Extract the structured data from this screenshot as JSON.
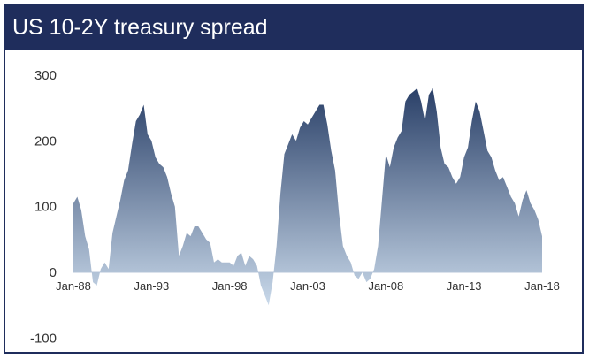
{
  "header": {
    "title": "US 10-2Y treasury spread"
  },
  "colors": {
    "header_bg": "#1f2d5c",
    "area_top": "#2a4068",
    "area_bottom": "#c9d9ea",
    "border": "#1f2d5c"
  },
  "chart_data": {
    "type": "area",
    "title": "US 10-2Y treasury spread",
    "xlabel": "",
    "ylabel": "",
    "ylim": [
      -100,
      300
    ],
    "xlim": [
      "1988-01",
      "2018-01"
    ],
    "y_ticks": [
      300,
      200,
      100,
      0,
      -100
    ],
    "x_ticks": [
      "Jan-88",
      "Jan-93",
      "Jan-98",
      "Jan-03",
      "Jan-08",
      "Jan-13",
      "Jan-18"
    ],
    "grid": false,
    "legend": "none",
    "x": [
      "1988-01",
      "1988-04",
      "1988-07",
      "1988-10",
      "1989-01",
      "1989-04",
      "1989-07",
      "1989-10",
      "1990-01",
      "1990-04",
      "1990-07",
      "1990-10",
      "1991-01",
      "1991-04",
      "1991-07",
      "1991-10",
      "1992-01",
      "1992-04",
      "1992-07",
      "1992-10",
      "1993-01",
      "1993-04",
      "1993-07",
      "1993-10",
      "1994-01",
      "1994-04",
      "1994-07",
      "1994-10",
      "1995-01",
      "1995-04",
      "1995-07",
      "1995-10",
      "1996-01",
      "1996-04",
      "1996-07",
      "1996-10",
      "1997-01",
      "1997-04",
      "1997-07",
      "1997-10",
      "1998-01",
      "1998-04",
      "1998-07",
      "1998-10",
      "1999-01",
      "1999-04",
      "1999-07",
      "1999-10",
      "2000-01",
      "2000-04",
      "2000-07",
      "2000-10",
      "2001-01",
      "2001-04",
      "2001-07",
      "2001-10",
      "2002-01",
      "2002-04",
      "2002-07",
      "2002-10",
      "2003-01",
      "2003-04",
      "2003-07",
      "2003-10",
      "2004-01",
      "2004-04",
      "2004-07",
      "2004-10",
      "2005-01",
      "2005-04",
      "2005-07",
      "2005-10",
      "2006-01",
      "2006-04",
      "2006-07",
      "2006-10",
      "2007-01",
      "2007-04",
      "2007-07",
      "2007-10",
      "2008-01",
      "2008-04",
      "2008-07",
      "2008-10",
      "2009-01",
      "2009-04",
      "2009-07",
      "2009-10",
      "2010-01",
      "2010-04",
      "2010-07",
      "2010-10",
      "2011-01",
      "2011-04",
      "2011-07",
      "2011-10",
      "2012-01",
      "2012-04",
      "2012-07",
      "2012-10",
      "2013-01",
      "2013-04",
      "2013-07",
      "2013-10",
      "2014-01",
      "2014-04",
      "2014-07",
      "2014-10",
      "2015-01",
      "2015-04",
      "2015-07",
      "2015-10",
      "2016-01",
      "2016-04",
      "2016-07",
      "2016-10",
      "2017-01",
      "2017-04",
      "2017-07",
      "2017-10",
      "2018-01"
    ],
    "series": [
      {
        "values": [
          105,
          115,
          95,
          55,
          35,
          -15,
          -20,
          5,
          15,
          5,
          60,
          85,
          110,
          140,
          155,
          195,
          230,
          240,
          255,
          210,
          200,
          175,
          165,
          160,
          145,
          120,
          100,
          25,
          40,
          60,
          55,
          70,
          70,
          60,
          50,
          45,
          15,
          20,
          15,
          15,
          15,
          10,
          25,
          30,
          10,
          25,
          20,
          10,
          -20,
          -35,
          -50,
          -15,
          40,
          120,
          180,
          195,
          210,
          200,
          220,
          230,
          225,
          235,
          245,
          255,
          255,
          225,
          185,
          155,
          90,
          40,
          25,
          15,
          -5,
          -10,
          0,
          -15,
          -10,
          5,
          40,
          110,
          180,
          160,
          190,
          205,
          215,
          260,
          270,
          275,
          280,
          260,
          230,
          270,
          280,
          245,
          190,
          165,
          160,
          145,
          135,
          145,
          175,
          190,
          230,
          260,
          245,
          215,
          185,
          175,
          155,
          140,
          145,
          130,
          115,
          105,
          85,
          110,
          125,
          105,
          95,
          80,
          55
        ]
      }
    ]
  }
}
